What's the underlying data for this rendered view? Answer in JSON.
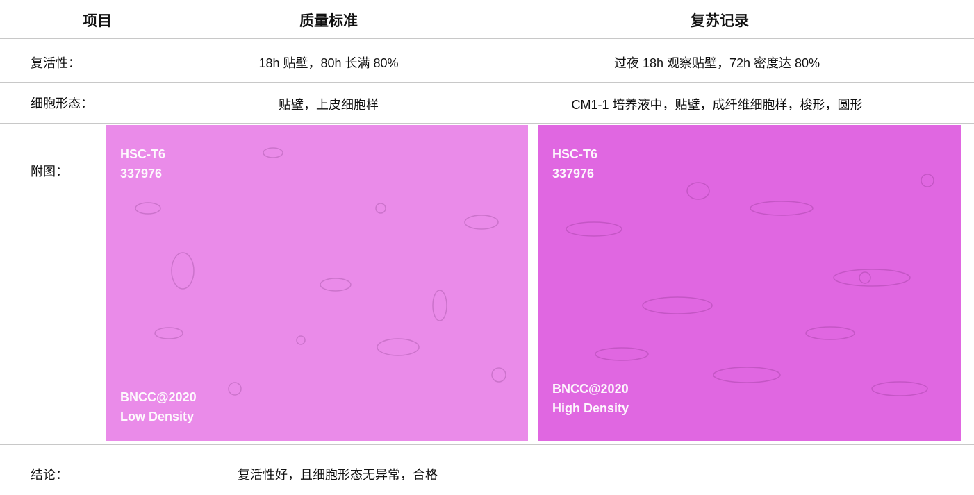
{
  "header": [
    "项目",
    "质量标准",
    "复苏记录"
  ],
  "rows": [
    {
      "label": "复活性：",
      "standard": "18h 贴壁，80h 长满 80%",
      "record": "过夜 18h 观察贴壁，72h 密度达 80%"
    },
    {
      "label": "细胞形态：",
      "standard": "贴壁，上皮细胞样",
      "record": "CM1-1 培养液中，贴壁，成纤维细胞样，梭形，圆形"
    }
  ],
  "figure_label": "附图：",
  "images": [
    {
      "top": [
        "HSC-T6",
        "337976"
      ],
      "bottom": [
        "BNCC@2020",
        "Low Density"
      ]
    },
    {
      "top": [
        "HSC-T6",
        "337976"
      ],
      "bottom": [
        "BNCC@2020",
        "High Density"
      ]
    }
  ],
  "conclusion": {
    "label": "结论：",
    "text": "复活性好，且细胞形态无异常，合格"
  }
}
